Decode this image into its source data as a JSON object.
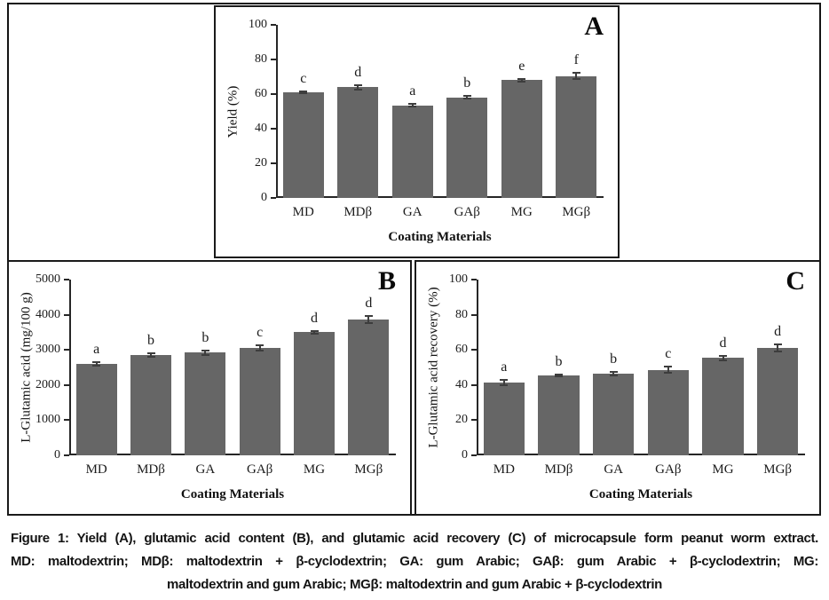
{
  "caption": {
    "line1": "Figure 1: Yield (A), glutamic acid content (B), and glutamic acid recovery (C) of microcapsule form peanut worm extract.",
    "line2": "MD: maltodextrin; MDβ: maltodextrin + β-cyclodextrin; GA: gum Arabic; GAβ: gum Arabic + β-cyclodextrin; MG:",
    "line3": "maltodextrin and gum Arabic; MGβ: maltodextrin and gum Arabic + β-cyclodextrin"
  },
  "colors": {
    "bar": "#666666",
    "error": "#3d3d3d",
    "axis": "#262626",
    "border": "#1a1a1a",
    "text": "#1c1c1c"
  },
  "chart_data": [
    {
      "type": "bar",
      "panel_label": "A",
      "title": "",
      "xlabel": "Coating Materials",
      "ylabel": "Yield (%)",
      "categories": [
        "MD",
        "MDβ",
        "GA",
        "GAβ",
        "MG",
        "MGβ"
      ],
      "values": [
        61,
        64,
        53.5,
        58,
        68,
        70.5
      ],
      "errors": [
        0.7,
        1.2,
        0.7,
        0.8,
        0.6,
        1.6
      ],
      "sig_letters": [
        "c",
        "d",
        "a",
        "b",
        "e",
        "f"
      ],
      "ylim": [
        0,
        100
      ],
      "yticks": [
        0,
        20,
        40,
        60,
        80,
        100
      ],
      "grid": false,
      "legend": "none"
    },
    {
      "type": "bar",
      "panel_label": "B",
      "title": "",
      "xlabel": "Coating Materials",
      "ylabel": "L-Glutamic acid (mg/100 g)",
      "categories": [
        "MD",
        "MDβ",
        "GA",
        "GAβ",
        "MG",
        "MGβ"
      ],
      "values": [
        2600,
        2850,
        2920,
        3060,
        3500,
        3870
      ],
      "errors": [
        60,
        45,
        70,
        70,
        30,
        105
      ],
      "sig_letters": [
        "a",
        "b",
        "b",
        "c",
        "d",
        "d"
      ],
      "ylim": [
        0,
        5000
      ],
      "yticks": [
        0,
        1000,
        2000,
        3000,
        4000,
        5000
      ],
      "grid": false,
      "legend": "none"
    },
    {
      "type": "bar",
      "panel_label": "C",
      "title": "",
      "xlabel": "Coating Materials",
      "ylabel": "L-Glutamic acid recovery (%)",
      "categories": [
        "MD",
        "MDβ",
        "GA",
        "GAβ",
        "MG",
        "MGβ"
      ],
      "values": [
        41.5,
        45.3,
        46.5,
        48.7,
        55.5,
        61.3
      ],
      "errors": [
        1.5,
        0.6,
        1.0,
        1.6,
        1.3,
        2.0
      ],
      "sig_letters": [
        "a",
        "b",
        "b",
        "c",
        "d",
        "d"
      ],
      "ylim": [
        0,
        100
      ],
      "yticks": [
        0,
        20,
        40,
        60,
        80,
        100
      ],
      "grid": false,
      "legend": "none"
    }
  ]
}
